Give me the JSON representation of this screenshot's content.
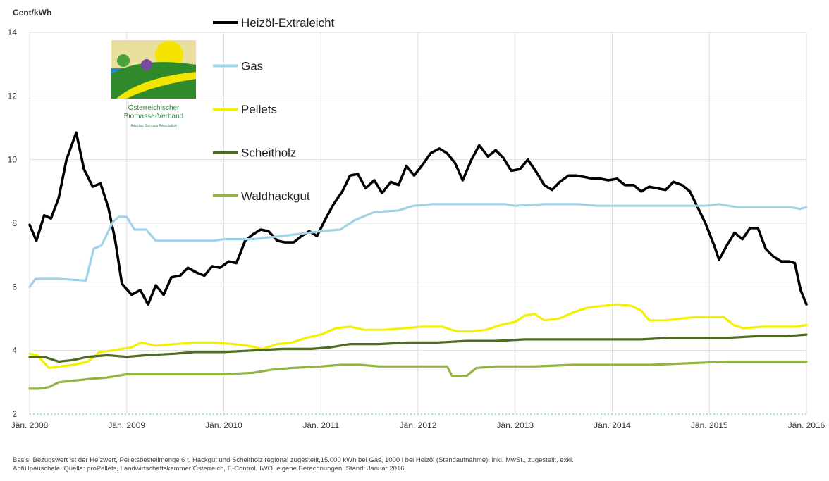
{
  "chart_data": {
    "type": "line",
    "ylabel": "Cent/kWh",
    "ylim": [
      2,
      14
    ],
    "yticks": [
      2,
      4,
      6,
      8,
      10,
      12,
      14
    ],
    "xlim": [
      2008.0,
      2016.0
    ],
    "xticks": [
      {
        "x": 2008,
        "label": "Jän. 2008"
      },
      {
        "x": 2009,
        "label": "Jän. 2009"
      },
      {
        "x": 2010,
        "label": "Jän. 2010"
      },
      {
        "x": 2011,
        "label": "Jän. 2011"
      },
      {
        "x": 2012,
        "label": "Jän. 2012"
      },
      {
        "x": 2013,
        "label": "Jän. 2013"
      },
      {
        "x": 2014,
        "label": "Jän. 2014"
      },
      {
        "x": 2015,
        "label": "Jän. 2015"
      },
      {
        "x": 2016,
        "label": "Jän. 2016"
      }
    ],
    "grid": "horizontal",
    "legend_position": "top-center",
    "series": [
      {
        "name": "Heizöl-Extraleicht",
        "color": "#000000",
        "points": [
          [
            2008.0,
            7.95
          ],
          [
            2008.07,
            7.45
          ],
          [
            2008.15,
            8.25
          ],
          [
            2008.22,
            8.15
          ],
          [
            2008.3,
            8.8
          ],
          [
            2008.38,
            10.0
          ],
          [
            2008.48,
            10.85
          ],
          [
            2008.56,
            9.7
          ],
          [
            2008.65,
            9.15
          ],
          [
            2008.73,
            9.25
          ],
          [
            2008.81,
            8.5
          ],
          [
            2008.88,
            7.5
          ],
          [
            2008.95,
            6.1
          ],
          [
            2009.05,
            5.75
          ],
          [
            2009.14,
            5.9
          ],
          [
            2009.22,
            5.45
          ],
          [
            2009.3,
            6.05
          ],
          [
            2009.38,
            5.75
          ],
          [
            2009.46,
            6.3
          ],
          [
            2009.55,
            6.35
          ],
          [
            2009.63,
            6.6
          ],
          [
            2009.72,
            6.45
          ],
          [
            2009.8,
            6.35
          ],
          [
            2009.88,
            6.65
          ],
          [
            2009.96,
            6.6
          ],
          [
            2010.05,
            6.8
          ],
          [
            2010.13,
            6.75
          ],
          [
            2010.22,
            7.45
          ],
          [
            2010.3,
            7.65
          ],
          [
            2010.38,
            7.8
          ],
          [
            2010.46,
            7.75
          ],
          [
            2010.55,
            7.45
          ],
          [
            2010.63,
            7.4
          ],
          [
            2010.72,
            7.4
          ],
          [
            2010.8,
            7.6
          ],
          [
            2010.88,
            7.75
          ],
          [
            2010.96,
            7.6
          ],
          [
            2011.05,
            8.15
          ],
          [
            2011.13,
            8.6
          ],
          [
            2011.22,
            9.0
          ],
          [
            2011.3,
            9.5
          ],
          [
            2011.38,
            9.55
          ],
          [
            2011.46,
            9.1
          ],
          [
            2011.55,
            9.35
          ],
          [
            2011.63,
            8.95
          ],
          [
            2011.72,
            9.3
          ],
          [
            2011.8,
            9.2
          ],
          [
            2011.88,
            9.8
          ],
          [
            2011.96,
            9.5
          ],
          [
            2012.05,
            9.85
          ],
          [
            2012.13,
            10.2
          ],
          [
            2012.22,
            10.35
          ],
          [
            2012.3,
            10.2
          ],
          [
            2012.38,
            9.9
          ],
          [
            2012.46,
            9.35
          ],
          [
            2012.55,
            10.0
          ],
          [
            2012.63,
            10.45
          ],
          [
            2012.72,
            10.1
          ],
          [
            2012.8,
            10.3
          ],
          [
            2012.88,
            10.05
          ],
          [
            2012.96,
            9.65
          ],
          [
            2013.05,
            9.7
          ],
          [
            2013.13,
            10.0
          ],
          [
            2013.22,
            9.6
          ],
          [
            2013.3,
            9.2
          ],
          [
            2013.38,
            9.05
          ],
          [
            2013.46,
            9.3
          ],
          [
            2013.55,
            9.5
          ],
          [
            2013.63,
            9.5
          ],
          [
            2013.72,
            9.45
          ],
          [
            2013.8,
            9.4
          ],
          [
            2013.88,
            9.4
          ],
          [
            2013.96,
            9.35
          ],
          [
            2014.05,
            9.4
          ],
          [
            2014.13,
            9.2
          ],
          [
            2014.22,
            9.2
          ],
          [
            2014.3,
            9.0
          ],
          [
            2014.38,
            9.15
          ],
          [
            2014.46,
            9.1
          ],
          [
            2014.55,
            9.05
          ],
          [
            2014.63,
            9.3
          ],
          [
            2014.72,
            9.2
          ],
          [
            2014.8,
            9.0
          ],
          [
            2014.88,
            8.5
          ],
          [
            2014.96,
            8.0
          ],
          [
            2015.05,
            7.3
          ],
          [
            2015.1,
            6.85
          ],
          [
            2015.18,
            7.3
          ],
          [
            2015.26,
            7.7
          ],
          [
            2015.34,
            7.5
          ],
          [
            2015.42,
            7.85
          ],
          [
            2015.5,
            7.85
          ],
          [
            2015.58,
            7.2
          ],
          [
            2015.66,
            6.95
          ],
          [
            2015.74,
            6.8
          ],
          [
            2015.82,
            6.8
          ],
          [
            2015.88,
            6.75
          ],
          [
            2015.94,
            5.9
          ],
          [
            2016.0,
            5.45
          ]
        ]
      },
      {
        "name": "Gas",
        "color": "#9fd3e6",
        "points": [
          [
            2008.0,
            6.0
          ],
          [
            2008.06,
            6.25
          ],
          [
            2008.3,
            6.25
          ],
          [
            2008.58,
            6.2
          ],
          [
            2008.66,
            7.2
          ],
          [
            2008.74,
            7.3
          ],
          [
            2008.86,
            8.05
          ],
          [
            2008.92,
            8.2
          ],
          [
            2009.0,
            8.2
          ],
          [
            2009.08,
            7.8
          ],
          [
            2009.2,
            7.8
          ],
          [
            2009.3,
            7.45
          ],
          [
            2009.6,
            7.45
          ],
          [
            2009.9,
            7.45
          ],
          [
            2010.0,
            7.5
          ],
          [
            2010.3,
            7.5
          ],
          [
            2010.6,
            7.6
          ],
          [
            2011.0,
            7.75
          ],
          [
            2011.2,
            7.8
          ],
          [
            2011.35,
            8.1
          ],
          [
            2011.55,
            8.35
          ],
          [
            2011.8,
            8.4
          ],
          [
            2011.95,
            8.55
          ],
          [
            2012.15,
            8.6
          ],
          [
            2012.5,
            8.6
          ],
          [
            2012.9,
            8.6
          ],
          [
            2013.0,
            8.55
          ],
          [
            2013.3,
            8.6
          ],
          [
            2013.65,
            8.6
          ],
          [
            2013.85,
            8.55
          ],
          [
            2014.2,
            8.55
          ],
          [
            2014.5,
            8.55
          ],
          [
            2014.75,
            8.55
          ],
          [
            2014.95,
            8.55
          ],
          [
            2015.1,
            8.6
          ],
          [
            2015.3,
            8.5
          ],
          [
            2015.6,
            8.5
          ],
          [
            2015.85,
            8.5
          ],
          [
            2015.93,
            8.45
          ],
          [
            2016.0,
            8.5
          ]
        ]
      },
      {
        "name": "Pellets",
        "color": "#f2f200",
        "points": [
          [
            2008.0,
            3.9
          ],
          [
            2008.08,
            3.85
          ],
          [
            2008.2,
            3.45
          ],
          [
            2008.32,
            3.5
          ],
          [
            2008.45,
            3.55
          ],
          [
            2008.6,
            3.65
          ],
          [
            2008.72,
            3.95
          ],
          [
            2008.85,
            4.0
          ],
          [
            2008.95,
            4.05
          ],
          [
            2009.05,
            4.1
          ],
          [
            2009.15,
            4.25
          ],
          [
            2009.3,
            4.15
          ],
          [
            2009.5,
            4.2
          ],
          [
            2009.7,
            4.25
          ],
          [
            2009.9,
            4.25
          ],
          [
            2010.1,
            4.2
          ],
          [
            2010.25,
            4.15
          ],
          [
            2010.4,
            4.05
          ],
          [
            2010.55,
            4.2
          ],
          [
            2010.7,
            4.25
          ],
          [
            2010.85,
            4.4
          ],
          [
            2011.0,
            4.5
          ],
          [
            2011.15,
            4.7
          ],
          [
            2011.3,
            4.75
          ],
          [
            2011.45,
            4.65
          ],
          [
            2011.65,
            4.65
          ],
          [
            2011.85,
            4.7
          ],
          [
            2012.05,
            4.75
          ],
          [
            2012.25,
            4.75
          ],
          [
            2012.4,
            4.6
          ],
          [
            2012.55,
            4.6
          ],
          [
            2012.7,
            4.65
          ],
          [
            2012.85,
            4.8
          ],
          [
            2013.0,
            4.9
          ],
          [
            2013.1,
            5.1
          ],
          [
            2013.2,
            5.15
          ],
          [
            2013.3,
            4.95
          ],
          [
            2013.45,
            5.0
          ],
          [
            2013.6,
            5.2
          ],
          [
            2013.75,
            5.35
          ],
          [
            2013.9,
            5.4
          ],
          [
            2014.05,
            5.45
          ],
          [
            2014.2,
            5.4
          ],
          [
            2014.3,
            5.25
          ],
          [
            2014.38,
            4.95
          ],
          [
            2014.55,
            4.95
          ],
          [
            2014.7,
            5.0
          ],
          [
            2014.85,
            5.05
          ],
          [
            2015.0,
            5.05
          ],
          [
            2015.15,
            5.05
          ],
          [
            2015.25,
            4.8
          ],
          [
            2015.35,
            4.7
          ],
          [
            2015.55,
            4.75
          ],
          [
            2015.75,
            4.75
          ],
          [
            2015.9,
            4.75
          ],
          [
            2016.0,
            4.8
          ]
        ]
      },
      {
        "name": "Scheitholz",
        "color": "#4f6b22",
        "points": [
          [
            2008.0,
            3.8
          ],
          [
            2008.15,
            3.8
          ],
          [
            2008.3,
            3.65
          ],
          [
            2008.45,
            3.7
          ],
          [
            2008.6,
            3.8
          ],
          [
            2008.8,
            3.85
          ],
          [
            2009.0,
            3.8
          ],
          [
            2009.2,
            3.85
          ],
          [
            2009.5,
            3.9
          ],
          [
            2009.7,
            3.95
          ],
          [
            2010.0,
            3.95
          ],
          [
            2010.3,
            4.0
          ],
          [
            2010.6,
            4.05
          ],
          [
            2010.9,
            4.05
          ],
          [
            2011.1,
            4.1
          ],
          [
            2011.3,
            4.2
          ],
          [
            2011.6,
            4.2
          ],
          [
            2011.9,
            4.25
          ],
          [
            2012.2,
            4.25
          ],
          [
            2012.5,
            4.3
          ],
          [
            2012.8,
            4.3
          ],
          [
            2013.1,
            4.35
          ],
          [
            2013.4,
            4.35
          ],
          [
            2013.7,
            4.35
          ],
          [
            2014.0,
            4.35
          ],
          [
            2014.3,
            4.35
          ],
          [
            2014.6,
            4.4
          ],
          [
            2014.9,
            4.4
          ],
          [
            2015.2,
            4.4
          ],
          [
            2015.5,
            4.45
          ],
          [
            2015.8,
            4.45
          ],
          [
            2016.0,
            4.5
          ]
        ]
      },
      {
        "name": "Waldhackgut",
        "color": "#93b343",
        "points": [
          [
            2008.0,
            2.8
          ],
          [
            2008.1,
            2.8
          ],
          [
            2008.2,
            2.85
          ],
          [
            2008.3,
            3.0
          ],
          [
            2008.45,
            3.05
          ],
          [
            2008.6,
            3.1
          ],
          [
            2008.8,
            3.15
          ],
          [
            2009.0,
            3.25
          ],
          [
            2009.3,
            3.25
          ],
          [
            2009.7,
            3.25
          ],
          [
            2010.0,
            3.25
          ],
          [
            2010.3,
            3.3
          ],
          [
            2010.5,
            3.4
          ],
          [
            2010.7,
            3.45
          ],
          [
            2011.0,
            3.5
          ],
          [
            2011.2,
            3.55
          ],
          [
            2011.4,
            3.55
          ],
          [
            2011.6,
            3.5
          ],
          [
            2012.0,
            3.5
          ],
          [
            2012.3,
            3.5
          ],
          [
            2012.35,
            3.2
          ],
          [
            2012.5,
            3.2
          ],
          [
            2012.6,
            3.45
          ],
          [
            2012.8,
            3.5
          ],
          [
            2013.2,
            3.5
          ],
          [
            2013.6,
            3.55
          ],
          [
            2014.0,
            3.55
          ],
          [
            2014.4,
            3.55
          ],
          [
            2014.8,
            3.6
          ],
          [
            2015.2,
            3.65
          ],
          [
            2015.6,
            3.65
          ],
          [
            2016.0,
            3.65
          ]
        ]
      }
    ]
  },
  "logo": {
    "lines": [
      "Österreichischer",
      "Biomasse-Verband",
      "Austrian Biomass Association"
    ]
  },
  "footnote": {
    "line1": "Basis: Bezugswert ist der Heizwert, Pelletsbestellmenge 6 t, Hackgut und Scheitholz regional zugestellt,15.000 kWh bei Gas, 1000 l bei Heizöl (Standaufnahme), inkl. MwSt., zugestellt, exkl.",
    "line2": "Abfüllpauschale. Quelle: proPellets, Landwirtschaftskammer Österreich, E-Control, IWO, eigene Berechnungen; Stand: Januar 2016."
  }
}
